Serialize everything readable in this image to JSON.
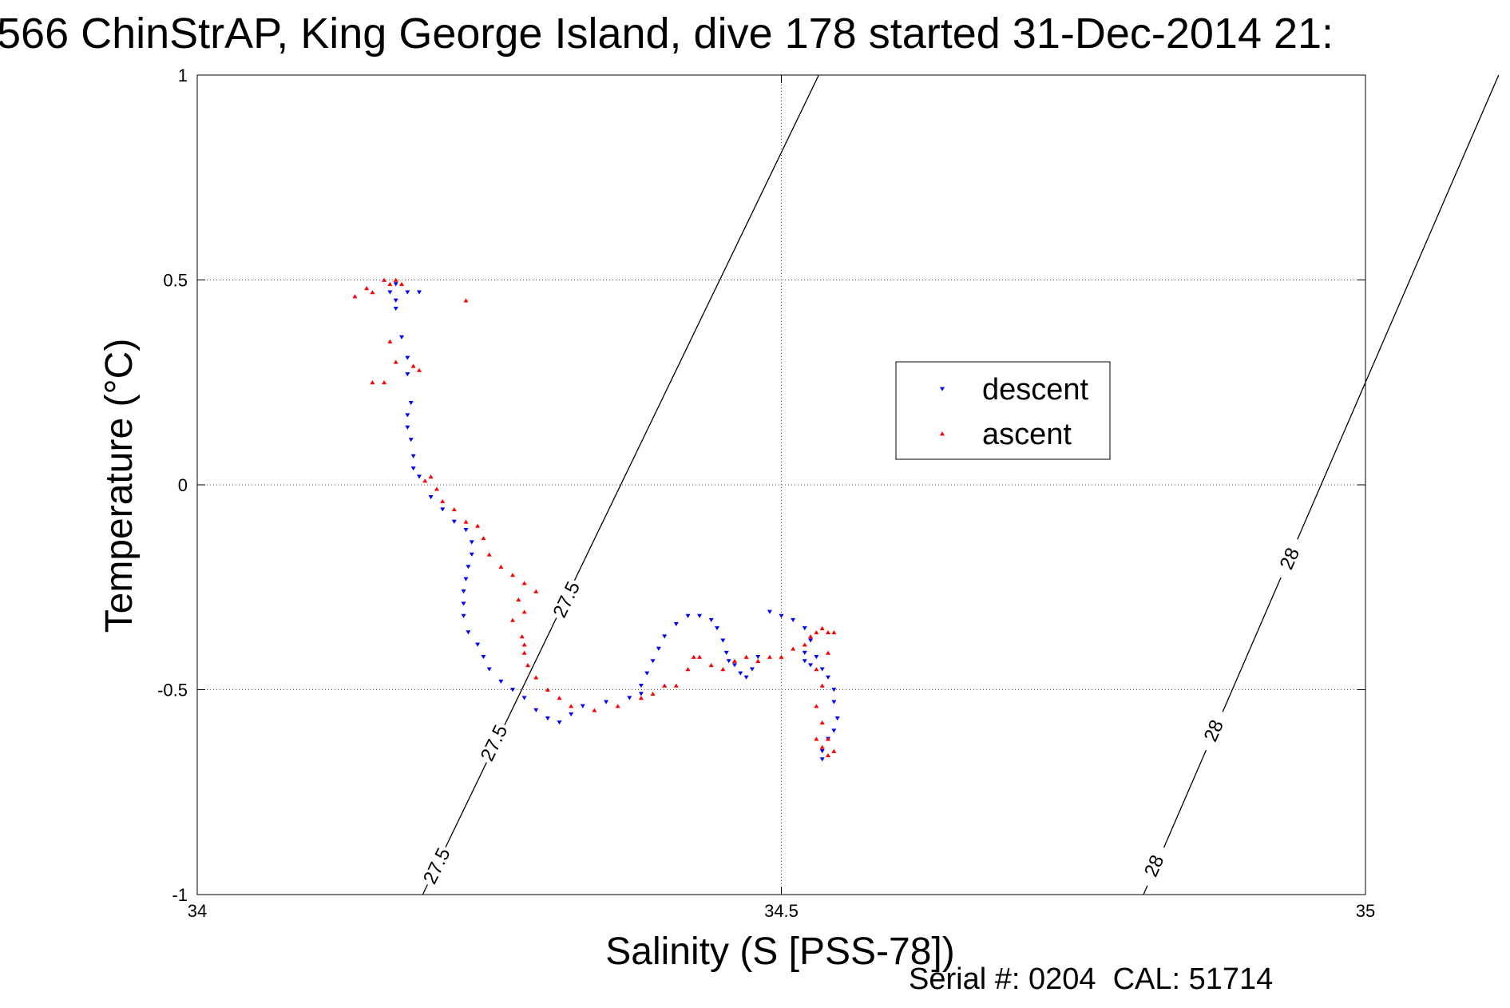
{
  "title": "566 ChinStrAP, King George Island, dive 178 started 31-Dec-2014 21:",
  "footer": "Serial #: 0204  CAL: 51714",
  "chart_data": {
    "type": "scatter",
    "xlabel": "Salinity (S [PSS-78])",
    "ylabel": "Temperature (°C)",
    "xlim": [
      34,
      35
    ],
    "ylim": [
      -1,
      1
    ],
    "xticks": [
      34,
      34.5,
      35
    ],
    "xtick_labels": [
      "34",
      "34.5",
      "35"
    ],
    "yticks": [
      -1,
      -0.5,
      0,
      0.5,
      1
    ],
    "ytick_labels": [
      "-1",
      "-0.5",
      "0",
      "0.5",
      "1"
    ],
    "grid": true,
    "legend": {
      "position": "inside-right",
      "entries": [
        "descent",
        "ascent"
      ]
    },
    "density_contours": [
      {
        "label": "27.5",
        "points": [
          [
            34.193,
            -1
          ],
          [
            34.532,
            1
          ]
        ],
        "label_positions": [
          [
            34.205,
            -0.93
          ],
          [
            34.254,
            -0.63
          ],
          [
            34.316,
            -0.28
          ]
        ]
      },
      {
        "label": "28",
        "points": [
          [
            34.81,
            -1
          ],
          [
            35.114,
            1
          ]
        ],
        "label_positions": [
          [
            34.819,
            -0.93
          ],
          [
            34.87,
            -0.6
          ],
          [
            34.935,
            -0.18
          ]
        ]
      }
    ],
    "series": [
      {
        "name": "descent",
        "color": "#0000ff",
        "marker": "triangle-down",
        "points": [
          [
            34.17,
            0.49
          ],
          [
            34.165,
            0.47
          ],
          [
            34.17,
            0.45
          ],
          [
            34.17,
            0.43
          ],
          [
            34.18,
            0.47
          ],
          [
            34.19,
            0.47
          ],
          [
            34.175,
            0.36
          ],
          [
            34.18,
            0.31
          ],
          [
            34.18,
            0.27
          ],
          [
            34.183,
            0.2
          ],
          [
            34.18,
            0.17
          ],
          [
            34.18,
            0.14
          ],
          [
            34.183,
            0.11
          ],
          [
            34.185,
            0.07
          ],
          [
            34.185,
            0.04
          ],
          [
            34.19,
            0.02
          ],
          [
            34.2,
            -0.03
          ],
          [
            34.21,
            -0.06
          ],
          [
            34.22,
            -0.09
          ],
          [
            34.23,
            -0.11
          ],
          [
            34.235,
            -0.14
          ],
          [
            34.235,
            -0.17
          ],
          [
            34.232,
            -0.2
          ],
          [
            34.23,
            -0.23
          ],
          [
            34.228,
            -0.26
          ],
          [
            34.228,
            -0.29
          ],
          [
            34.228,
            -0.32
          ],
          [
            34.232,
            -0.36
          ],
          [
            34.24,
            -0.39
          ],
          [
            34.245,
            -0.42
          ],
          [
            34.25,
            -0.45
          ],
          [
            34.26,
            -0.48
          ],
          [
            34.27,
            -0.5
          ],
          [
            34.28,
            -0.52
          ],
          [
            34.29,
            -0.55
          ],
          [
            34.3,
            -0.57
          ],
          [
            34.31,
            -0.58
          ],
          [
            34.32,
            -0.56
          ],
          [
            34.33,
            -0.54
          ],
          [
            34.35,
            -0.53
          ],
          [
            34.37,
            -0.52
          ],
          [
            34.38,
            -0.51
          ],
          [
            34.38,
            -0.49
          ],
          [
            34.385,
            -0.46
          ],
          [
            34.39,
            -0.43
          ],
          [
            34.395,
            -0.4
          ],
          [
            34.4,
            -0.37
          ],
          [
            34.41,
            -0.34
          ],
          [
            34.42,
            -0.32
          ],
          [
            34.43,
            -0.32
          ],
          [
            34.44,
            -0.33
          ],
          [
            34.445,
            -0.35
          ],
          [
            34.45,
            -0.38
          ],
          [
            34.453,
            -0.41
          ],
          [
            34.455,
            -0.43
          ],
          [
            34.46,
            -0.44
          ],
          [
            34.465,
            -0.46
          ],
          [
            34.47,
            -0.47
          ],
          [
            34.475,
            -0.45
          ],
          [
            34.48,
            -0.42
          ],
          [
            34.49,
            -0.31
          ],
          [
            34.5,
            -0.32
          ],
          [
            34.51,
            -0.33
          ],
          [
            34.52,
            -0.35
          ],
          [
            34.525,
            -0.38
          ],
          [
            34.52,
            -0.41
          ],
          [
            34.52,
            -0.43
          ],
          [
            34.525,
            -0.44
          ],
          [
            34.53,
            -0.42
          ],
          [
            34.535,
            -0.45
          ],
          [
            34.54,
            -0.47
          ],
          [
            34.545,
            -0.5
          ],
          [
            34.545,
            -0.53
          ],
          [
            34.548,
            -0.57
          ],
          [
            34.545,
            -0.6
          ],
          [
            34.54,
            -0.62
          ],
          [
            34.535,
            -0.65
          ],
          [
            34.535,
            -0.67
          ]
        ]
      },
      {
        "name": "ascent",
        "color": "#ff0000",
        "marker": "triangle-up",
        "points": [
          [
            34.135,
            0.46
          ],
          [
            34.145,
            0.48
          ],
          [
            34.15,
            0.47
          ],
          [
            34.16,
            0.5
          ],
          [
            34.165,
            0.49
          ],
          [
            34.17,
            0.5
          ],
          [
            34.175,
            0.49
          ],
          [
            34.23,
            0.45
          ],
          [
            34.165,
            0.35
          ],
          [
            34.17,
            0.3
          ],
          [
            34.15,
            0.25
          ],
          [
            34.16,
            0.25
          ],
          [
            34.185,
            0.29
          ],
          [
            34.19,
            0.28
          ],
          [
            34.195,
            0.01
          ],
          [
            34.2,
            0.02
          ],
          [
            34.205,
            -0.01
          ],
          [
            34.21,
            -0.04
          ],
          [
            34.22,
            -0.06
          ],
          [
            34.23,
            -0.09
          ],
          [
            34.24,
            -0.1
          ],
          [
            34.245,
            -0.13
          ],
          [
            34.25,
            -0.17
          ],
          [
            34.26,
            -0.2
          ],
          [
            34.27,
            -0.22
          ],
          [
            34.28,
            -0.24
          ],
          [
            34.29,
            -0.26
          ],
          [
            34.275,
            -0.28
          ],
          [
            34.28,
            -0.31
          ],
          [
            34.27,
            -0.33
          ],
          [
            34.278,
            -0.37
          ],
          [
            34.28,
            -0.39
          ],
          [
            34.28,
            -0.41
          ],
          [
            34.283,
            -0.44
          ],
          [
            34.29,
            -0.47
          ],
          [
            34.3,
            -0.5
          ],
          [
            34.31,
            -0.52
          ],
          [
            34.32,
            -0.54
          ],
          [
            34.34,
            -0.55
          ],
          [
            34.36,
            -0.54
          ],
          [
            34.38,
            -0.52
          ],
          [
            34.39,
            -0.51
          ],
          [
            34.4,
            -0.49
          ],
          [
            34.41,
            -0.49
          ],
          [
            34.42,
            -0.45
          ],
          [
            34.425,
            -0.42
          ],
          [
            34.43,
            -0.42
          ],
          [
            34.44,
            -0.44
          ],
          [
            34.45,
            -0.45
          ],
          [
            34.46,
            -0.43
          ],
          [
            34.47,
            -0.42
          ],
          [
            34.48,
            -0.43
          ],
          [
            34.49,
            -0.42
          ],
          [
            34.5,
            -0.42
          ],
          [
            34.51,
            -0.4
          ],
          [
            34.52,
            -0.39
          ],
          [
            34.525,
            -0.37
          ],
          [
            34.53,
            -0.36
          ],
          [
            34.535,
            -0.35
          ],
          [
            34.54,
            -0.36
          ],
          [
            34.545,
            -0.36
          ],
          [
            34.54,
            -0.41
          ],
          [
            34.53,
            -0.45
          ],
          [
            34.535,
            -0.49
          ],
          [
            34.53,
            -0.54
          ],
          [
            34.535,
            -0.58
          ],
          [
            34.53,
            -0.62
          ],
          [
            34.535,
            -0.64
          ],
          [
            34.54,
            -0.66
          ],
          [
            34.545,
            -0.65
          ],
          [
            34.54,
            -0.62
          ]
        ]
      }
    ]
  }
}
